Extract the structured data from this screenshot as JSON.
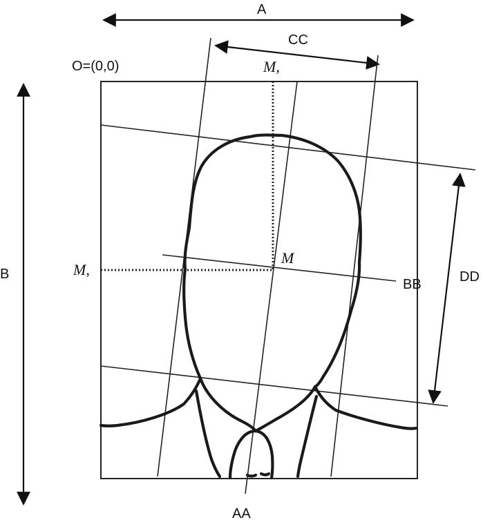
{
  "labels": {
    "A": "A",
    "B": "B",
    "CC": "CC",
    "DD": "DD",
    "BB": "BB",
    "AA": "AA",
    "origin": "O=(0,0)",
    "M": "M",
    "M_top": "M,",
    "M_left": "M,"
  }
}
